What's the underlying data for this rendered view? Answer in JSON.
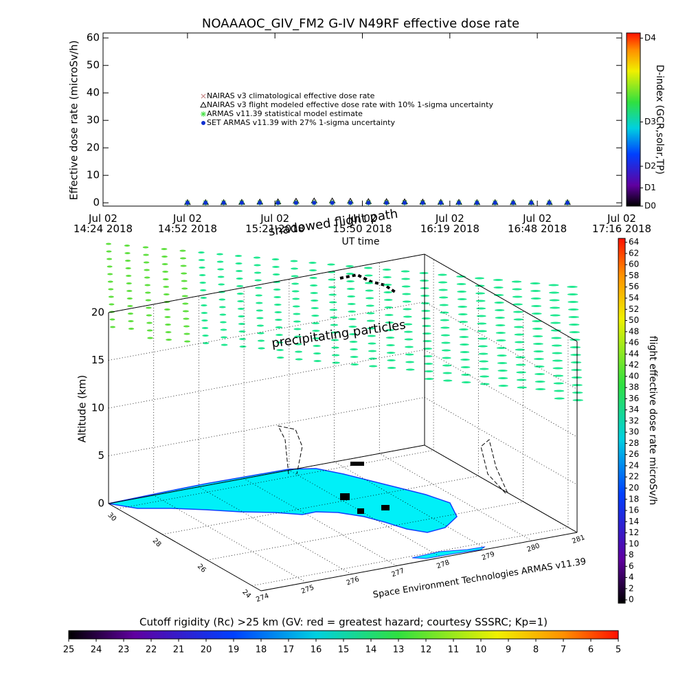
{
  "chart_data": [
    {
      "type": "line",
      "title": "NOAAAOC_GIV_FM2 G-IV    N49RF  effective dose rate",
      "y_label": "Effective dose rate (microSv/h)",
      "x_label": "UT time",
      "xlim": [
        "2018-07-02T14:24",
        "2018-07-02T17:16"
      ],
      "xticks": [
        {
          "value": "2018-07-02T14:24",
          "label": "Jul 02 14:24 2018"
        },
        {
          "value": "2018-07-02T14:52",
          "label": "Jul 02 14:52 2018"
        },
        {
          "value": "2018-07-02T15:21",
          "label": "Jul 02 15:21 2018"
        },
        {
          "value": "2018-07-02T15:50",
          "label": "Jul 02 15:50 2018"
        },
        {
          "value": "2018-07-02T16:19",
          "label": "Jul 02 16:19 2018"
        },
        {
          "value": "2018-07-02T16:48",
          "label": "Jul 02 16:48 2018"
        },
        {
          "value": "2018-07-02T17:16",
          "label": "Jul 02 17:16 2018"
        }
      ],
      "ylim": [
        -1.2,
        61.8
      ],
      "yticks": [
        0,
        10,
        20,
        30,
        40,
        50,
        60
      ],
      "x": [
        "2018-07-02T14:52",
        "2018-07-02T14:58",
        "2018-07-02T15:04",
        "2018-07-02T15:10",
        "2018-07-02T15:16",
        "2018-07-02T15:22",
        "2018-07-02T15:28",
        "2018-07-02T15:34",
        "2018-07-02T15:40",
        "2018-07-02T15:46",
        "2018-07-02T15:52",
        "2018-07-02T15:58",
        "2018-07-02T16:04",
        "2018-07-02T16:10",
        "2018-07-02T16:16",
        "2018-07-02T16:22",
        "2018-07-02T16:28",
        "2018-07-02T16:34",
        "2018-07-02T16:40",
        "2018-07-02T16:46",
        "2018-07-02T16:52",
        "2018-07-02T16:58"
      ],
      "series": [
        {
          "name": "NAIRAS v3 climatological effective dose rate",
          "color": "#c07878",
          "marker": "x",
          "values": [
            0.1,
            0.1,
            0.1,
            0.1,
            0.1,
            0.1,
            0.2,
            0.2,
            0.2,
            0.2,
            0.2,
            0.2,
            0.2,
            0.2,
            0.1,
            0.1,
            0.1,
            0.1,
            0.1,
            0.1,
            0.1,
            0.1
          ]
        },
        {
          "name": "NAIRAS v3 flight modeled effective dose rate with 10% 1-sigma uncertainty",
          "color": "#000000",
          "marker": "triangle",
          "values": [
            0.1,
            0.1,
            0.1,
            0.2,
            0.3,
            0.4,
            0.6,
            0.7,
            0.7,
            0.6,
            0.5,
            0.5,
            0.4,
            0.3,
            0.2,
            0.2,
            0.1,
            0.1,
            0.1,
            0.1,
            0.1,
            0.1
          ]
        },
        {
          "name": "ARMAS v11.39 statistical model estimate",
          "color": "#40e040",
          "marker": "asterisk",
          "values": [
            0,
            0,
            0,
            0,
            0,
            0,
            0,
            0,
            0,
            0,
            0,
            0,
            0,
            0,
            0,
            0,
            0,
            0,
            0,
            0,
            0,
            0
          ]
        },
        {
          "name": "SET ARMAS v11.39 with 27% 1-sigma uncertainty",
          "color": "#1030d0",
          "marker": "dot",
          "values": [
            0,
            0,
            0,
            0,
            0,
            0,
            0,
            0,
            0,
            0,
            0,
            0,
            0,
            0,
            0,
            0,
            0,
            0,
            0,
            0,
            0,
            0
          ]
        }
      ],
      "colorbar": {
        "label": "D-index (GCR,solar,TP)",
        "lim": [
          0,
          100
        ],
        "ticks": [
          {
            "value": 0,
            "label": "D0"
          },
          {
            "value": 10.5,
            "label": "D1"
          },
          {
            "value": 23,
            "label": "D2"
          },
          {
            "value": 48.6,
            "label": "D3"
          },
          {
            "value": 97,
            "label": "D4"
          }
        ]
      }
    },
    {
      "type": "scatter3d",
      "z_label": "Altitude (km)",
      "zlim": [
        0,
        20
      ],
      "zticks": [
        0,
        5,
        10,
        15,
        20
      ],
      "xlim": [
        274,
        281
      ],
      "xticks": [
        274,
        275,
        276,
        277,
        278,
        279,
        280,
        281
      ],
      "ylim": [
        23.6,
        30.4
      ],
      "yticks": [
        24,
        26,
        28,
        30
      ],
      "annotations": [
        "shadowed flight path",
        "precipitating particles",
        "Space Environment Technologies ARMAS v11.39"
      ],
      "colorbar": {
        "label": "flight effective dose rate microSv/h",
        "lim": [
          -0.6,
          64.7
        ],
        "ticks": [
          0,
          2,
          4,
          6,
          8,
          10,
          12,
          14,
          16,
          18,
          20,
          22,
          24,
          26,
          28,
          30,
          32,
          34,
          36,
          38,
          40,
          42,
          44,
          46,
          48,
          50,
          52,
          54,
          56,
          58,
          60,
          62,
          64
        ]
      }
    },
    {
      "type": "colorbar",
      "title": "Cutoff rigidity (Rc) >25 km (GV: red = greatest hazard; courtesy SSSRC; Kp=1)",
      "xlim": [
        25,
        5
      ],
      "xticks": [
        25,
        24,
        23,
        22,
        21,
        20,
        19,
        18,
        17,
        16,
        15,
        14,
        13,
        12,
        11,
        10,
        9,
        8,
        7,
        6,
        5
      ]
    }
  ]
}
